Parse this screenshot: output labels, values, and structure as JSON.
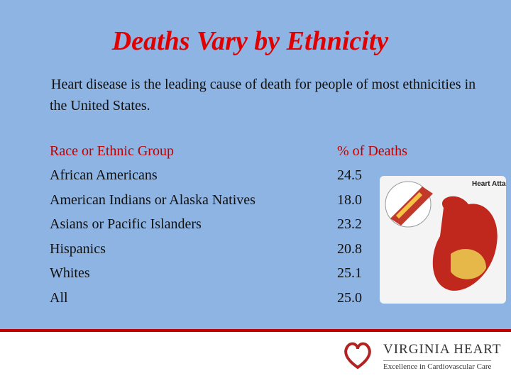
{
  "header": {
    "title": "Deaths Vary by Ethnicity",
    "intro": "Heart disease is the leading cause of death for people of most ethnicities in the United States."
  },
  "table": {
    "columns": [
      "Race or Ethnic Group",
      "% of Deaths"
    ],
    "rows": [
      [
        "African Americans",
        "24.5"
      ],
      [
        "American Indians or Alaska Natives",
        "18.0"
      ],
      [
        "Asians or Pacific Islanders",
        "23.2"
      ],
      [
        "Hispanics",
        "20.8"
      ],
      [
        "Whites",
        "25.1"
      ],
      [
        "All",
        "25.0"
      ]
    ]
  },
  "figure": {
    "label": "Heart Attack"
  },
  "logo": {
    "name": "VIRGINIA HEART",
    "tagline": "Excellence in Cardiovascular Care"
  }
}
